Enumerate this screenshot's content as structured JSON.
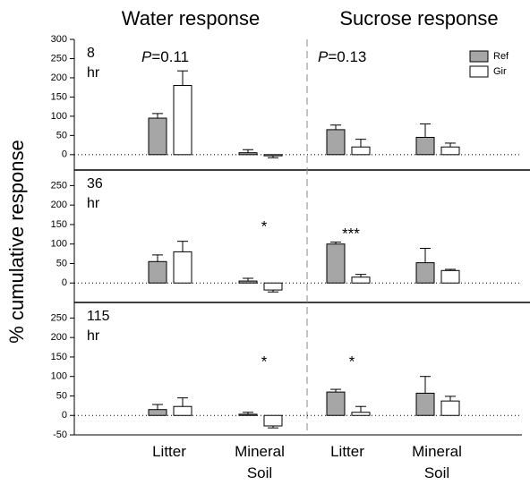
{
  "groups": [
    "Water response",
    "Sucrose response"
  ],
  "y_label": "% cumulative response",
  "chart_data": [
    {
      "type": "bar",
      "label": "8 hr",
      "annotations": [
        "P=0.11",
        "P=0.13"
      ],
      "ylim": [
        -40,
        300
      ],
      "yticks": [
        0,
        50,
        100,
        150,
        200,
        250,
        300
      ],
      "series": [
        {
          "name": "Ref",
          "color": "#a6a6a6",
          "values": [
            95,
            5,
            65,
            45
          ],
          "errors": [
            12,
            8,
            12,
            35
          ]
        },
        {
          "name": "Gir",
          "color": "#ffffff",
          "values": [
            180,
            -3,
            20,
            20
          ],
          "errors": [
            38,
            5,
            20,
            10
          ]
        }
      ]
    },
    {
      "type": "bar",
      "label": "36 hr",
      "annotations": [
        "*",
        "***"
      ],
      "ylim": [
        -50,
        290
      ],
      "yticks": [
        0,
        50,
        100,
        150,
        200,
        250
      ],
      "series": [
        {
          "color": "#a6a6a6",
          "values": [
            55,
            5,
            100,
            52
          ],
          "errors": [
            17,
            7,
            5,
            37
          ]
        },
        {
          "color": "#ffffff",
          "values": [
            80,
            -18,
            15,
            32
          ],
          "errors": [
            27,
            5,
            7,
            3
          ]
        }
      ]
    },
    {
      "type": "bar",
      "label": "115 hr",
      "annotations": [
        "*",
        "*"
      ],
      "ylim": [
        -50,
        290
      ],
      "yticks": [
        -50,
        0,
        50,
        100,
        150,
        200,
        250
      ],
      "categories": [
        "Litter",
        "Mineral Soil",
        "Litter",
        "Mineral Soil"
      ],
      "series": [
        {
          "color": "#a6a6a6",
          "values": [
            15,
            3,
            60,
            57
          ],
          "errors": [
            13,
            5,
            7,
            43
          ]
        },
        {
          "color": "#ffffff",
          "values": [
            23,
            -27,
            8,
            37
          ],
          "errors": [
            22,
            5,
            15,
            12
          ]
        }
      ]
    }
  ]
}
